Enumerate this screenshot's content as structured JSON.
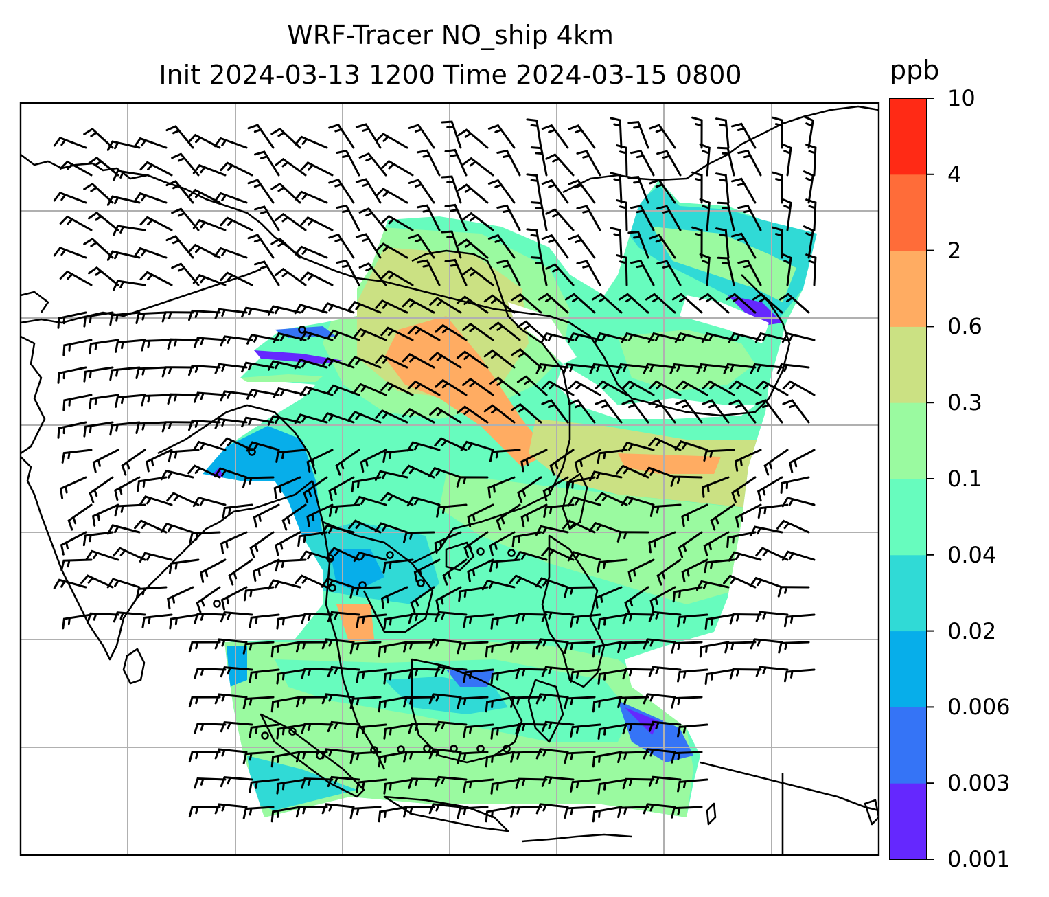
{
  "title": {
    "line1": "WRF-Tracer NO_ship 4km",
    "line2": "Init 2024-03-13 1200 Time 2024-03-15 0800"
  },
  "colorbar": {
    "unit": "ppb",
    "levels": [
      "0.001",
      "0.003",
      "0.006",
      "0.02",
      "0.04",
      "0.1",
      "0.3",
      "0.6",
      "2",
      "4",
      "10"
    ],
    "colors": [
      "#6528fe",
      "#3574f6",
      "#07aeea",
      "#30dad6",
      "#67fcbe",
      "#9afaa0",
      "#cbe183",
      "#ffac62",
      "#ff6c39",
      "#ff2a15"
    ]
  },
  "map": {
    "background": "#ffffff",
    "gridline_color": "#b0b0b0",
    "coastline_color": "#000000",
    "barb_color": "#000000"
  }
}
